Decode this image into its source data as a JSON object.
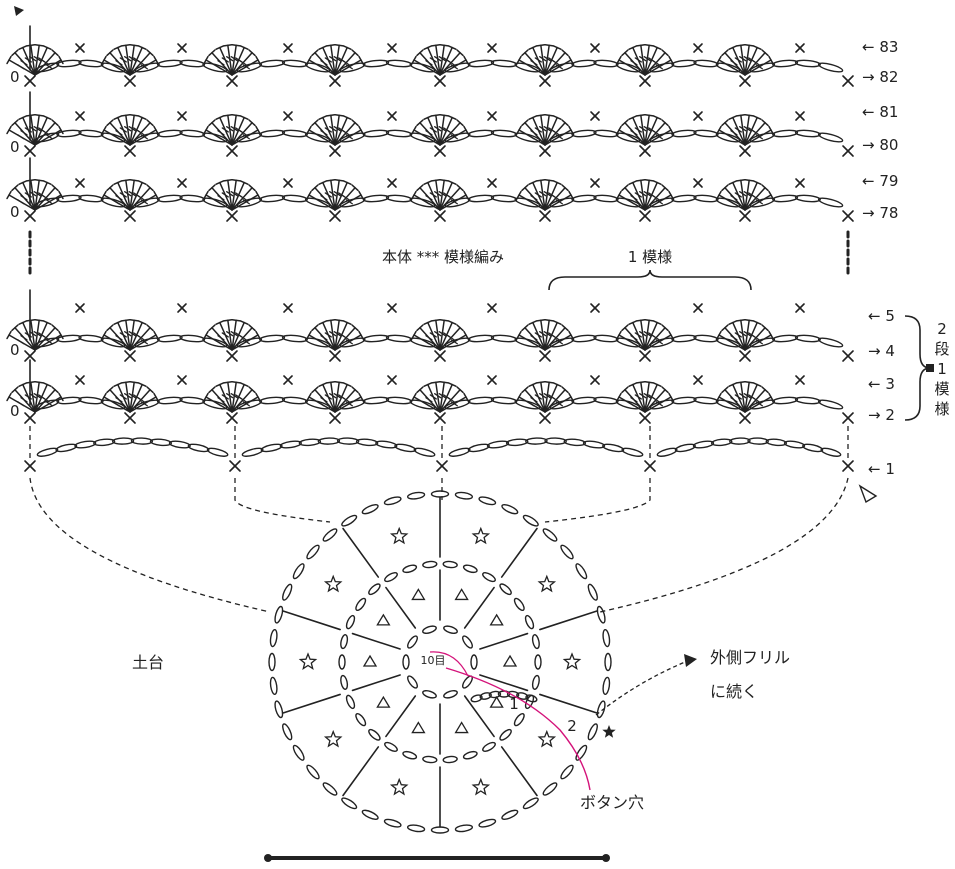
{
  "title": "本体 *** 模様編み",
  "repeat_label": "1 模様",
  "repeat_rows_label": [
    "2",
    "段",
    "1",
    "模",
    "様"
  ],
  "base_label": "土台",
  "continue_label": [
    "外側フリル",
    "に続く"
  ],
  "button_hole_label": "ボタン穴",
  "ring_label": "10目",
  "round_labels": [
    "1",
    "2"
  ],
  "top_rows": [
    {
      "label": "← 83"
    },
    {
      "label": "→ 82"
    },
    {
      "label": "← 81"
    },
    {
      "label": "→ 80"
    },
    {
      "label": "← 79"
    },
    {
      "label": "→ 78"
    }
  ],
  "bottom_rows": [
    {
      "label": "← 5"
    },
    {
      "label": "→ 4"
    },
    {
      "label": "← 3"
    },
    {
      "label": "→ 2"
    },
    {
      "label": "← 1"
    }
  ],
  "chain_zero": "0",
  "colors": {
    "ink": "#222222",
    "accent": "#d4137a"
  }
}
